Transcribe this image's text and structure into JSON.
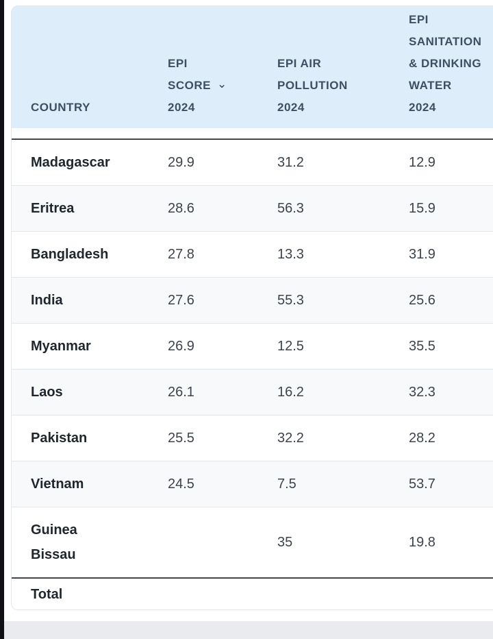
{
  "table": {
    "columns": [
      {
        "id": "country",
        "label": "COUNTRY",
        "lines": [
          "COUNTRY"
        ]
      },
      {
        "id": "epi_score",
        "label": "EPI SCORE 2024",
        "lines": [
          "EPI",
          "SCORE",
          "2024"
        ],
        "sort_icon": "chevron-down",
        "sort_icon_line": 1
      },
      {
        "id": "epi_air",
        "label": "EPI AIR POLLUTION 2024",
        "lines": [
          "EPI AIR",
          "POLLUTION",
          "2024"
        ]
      },
      {
        "id": "epi_water",
        "label": "EPI SANITATION & DRINKING WATER 2024",
        "lines": [
          "EPI",
          "SANITATION",
          "& DRINKING",
          "WATER",
          "2024"
        ]
      }
    ],
    "rows": [
      {
        "country": "Madagascar",
        "epi_score": "29.9",
        "epi_air": "31.2",
        "epi_water": "12.9"
      },
      {
        "country": "Eritrea",
        "epi_score": "28.6",
        "epi_air": "56.3",
        "epi_water": "15.9"
      },
      {
        "country": "Bangladesh",
        "epi_score": "27.8",
        "epi_air": "13.3",
        "epi_water": "31.9"
      },
      {
        "country": "India",
        "epi_score": "27.6",
        "epi_air": "55.3",
        "epi_water": "25.6"
      },
      {
        "country": "Myanmar",
        "epi_score": "26.9",
        "epi_air": "12.5",
        "epi_water": "35.5"
      },
      {
        "country": "Laos",
        "epi_score": "26.1",
        "epi_air": "16.2",
        "epi_water": "32.3"
      },
      {
        "country": "Pakistan",
        "epi_score": "25.5",
        "epi_air": "32.2",
        "epi_water": "28.2"
      },
      {
        "country": "Vietnam",
        "epi_score": "24.5",
        "epi_air": "7.5",
        "epi_water": "53.7"
      },
      {
        "country": "Guinea Bissau",
        "epi_score": "",
        "epi_air": "35",
        "epi_water": "19.8"
      }
    ],
    "footer": {
      "label": "Total"
    }
  },
  "colors": {
    "header_bg": "#ddedfa",
    "header_text": "#3e4e63",
    "row_alt": "#f7f9fa",
    "divider": "#e3e6e9",
    "strong_divider": "#43474d",
    "country_text": "#20262e",
    "value_text": "#3c434c",
    "page_strip": "#e9ebee",
    "edge": "#101114"
  }
}
